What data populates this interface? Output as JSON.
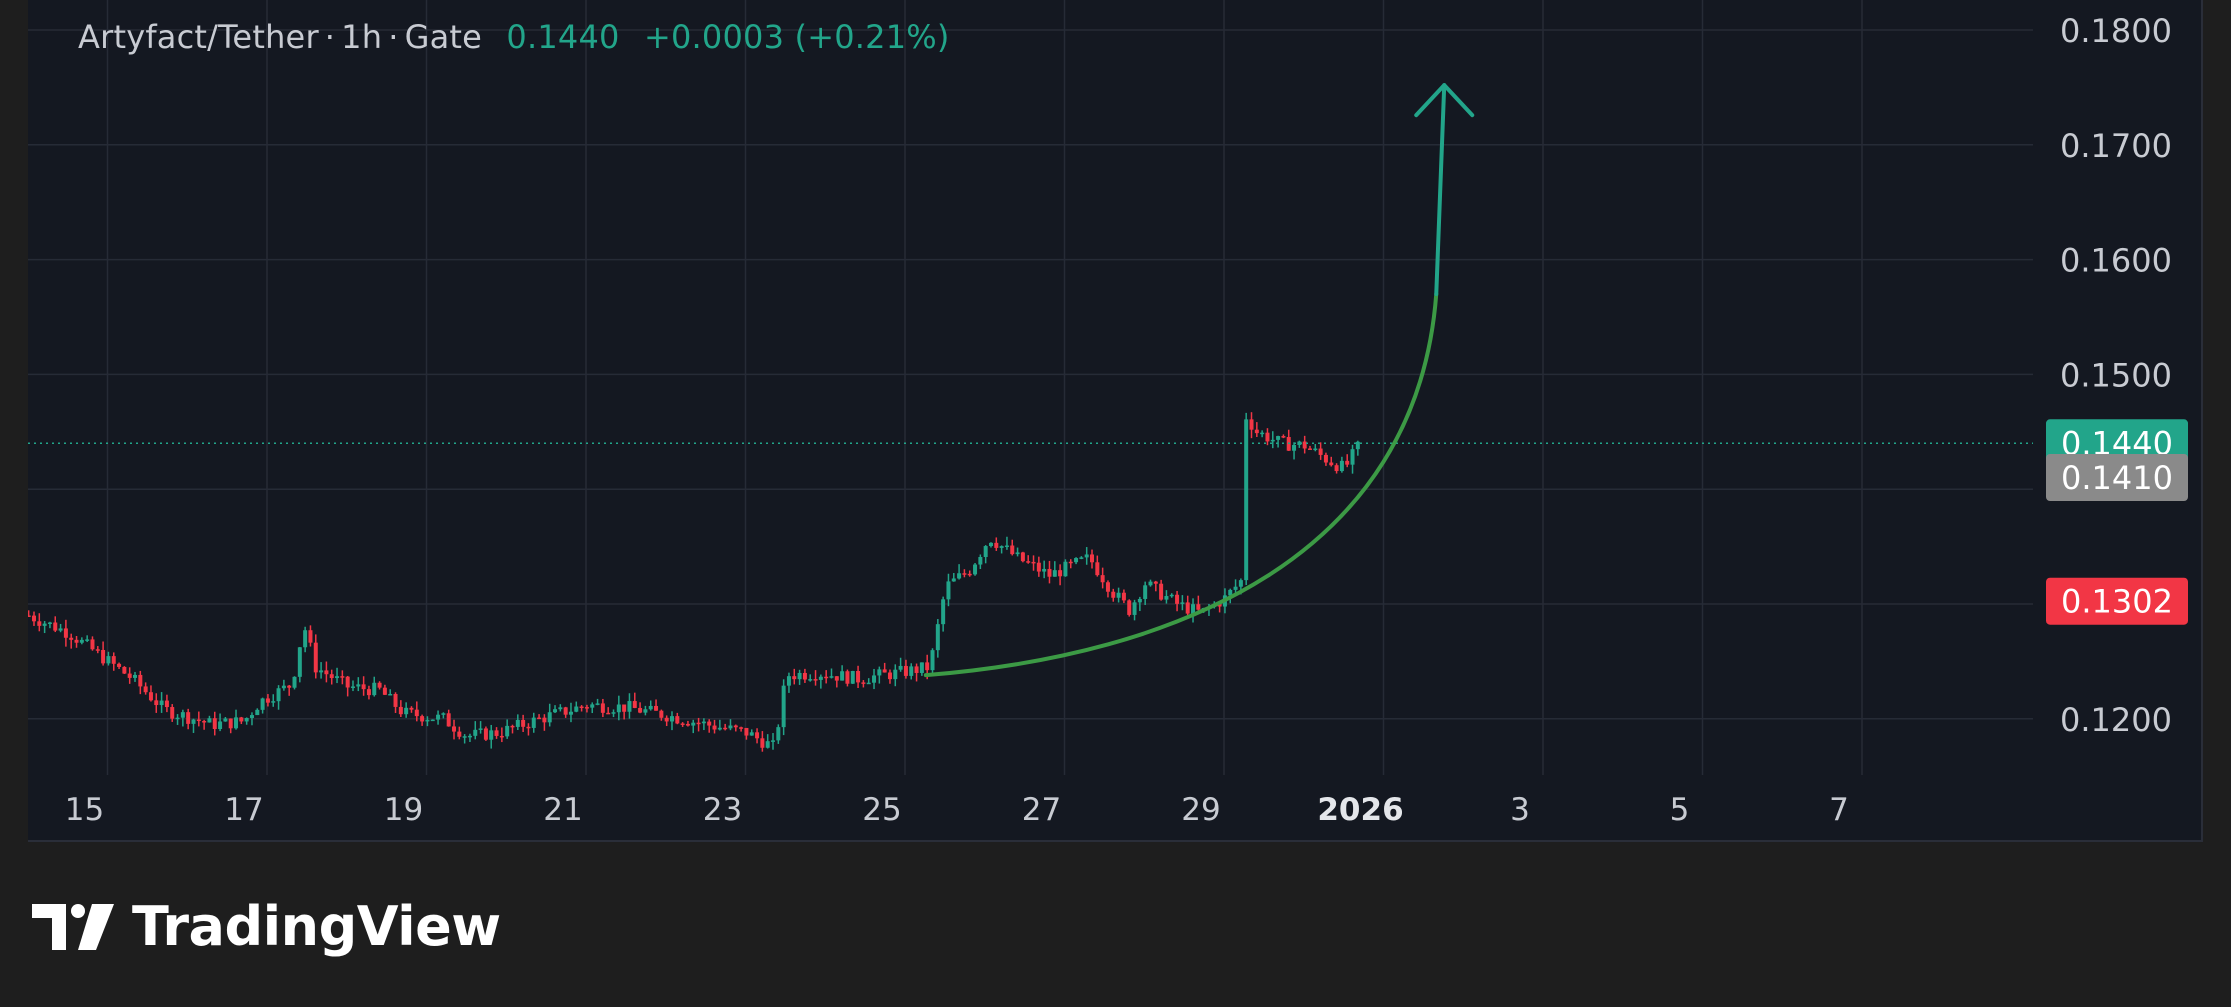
{
  "header": {
    "symbol": "Artyfact/Tether",
    "interval": "1h",
    "exchange": "Gate",
    "separator": "·",
    "last_price": "0.1440",
    "change": "+0.0003 (+0.21%)"
  },
  "footer": {
    "brand": "TradingView"
  },
  "colors": {
    "background": "#141821",
    "grid": "#262b36",
    "up": "#22a58a",
    "down": "#f23645",
    "curve": "#3c9a45",
    "arrow": "#22a58a",
    "price_line": "#22a58a"
  },
  "chart_data": {
    "type": "candlestick",
    "ylim": [
      0.116,
      0.184
    ],
    "y_ticks": [
      "0.1200",
      "0.1500",
      "0.1600",
      "0.1700",
      "0.1800"
    ],
    "x_ticks": [
      "15",
      "17",
      "19",
      "21",
      "23",
      "25",
      "27",
      "29",
      "2026",
      "3",
      "5",
      "7"
    ],
    "x_ticks_bold": [
      "2026"
    ],
    "price_labels": [
      {
        "text": "0.1440",
        "value": 0.144,
        "color": "#22a58a"
      },
      {
        "text": "0.1410",
        "value": 0.141,
        "color": "#8a8a8a"
      },
      {
        "text": "0.1302",
        "value": 0.1302,
        "color": "#f23645"
      }
    ],
    "series": [
      {
        "price_path": [
          [
            14.3,
            0.129
          ],
          [
            14.8,
            0.1275
          ],
          [
            15.2,
            0.1255
          ],
          [
            15.6,
            0.1235
          ],
          [
            16.0,
            0.1208
          ],
          [
            16.6,
            0.1195
          ],
          [
            17.0,
            0.1198
          ],
          [
            17.2,
            0.1215
          ],
          [
            17.6,
            0.123
          ],
          [
            17.75,
            0.1282
          ],
          [
            17.9,
            0.1245
          ],
          [
            18.3,
            0.1228
          ],
          [
            18.7,
            0.1225
          ],
          [
            19.0,
            0.1205
          ],
          [
            19.5,
            0.12
          ],
          [
            19.8,
            0.1185
          ],
          [
            20.2,
            0.1188
          ],
          [
            20.8,
            0.1202
          ],
          [
            21.3,
            0.1212
          ],
          [
            21.8,
            0.121
          ],
          [
            22.3,
            0.1203
          ],
          [
            22.8,
            0.1195
          ],
          [
            23.3,
            0.1188
          ],
          [
            23.65,
            0.1175
          ],
          [
            23.8,
            0.1238
          ],
          [
            24.2,
            0.124
          ],
          [
            24.7,
            0.1235
          ],
          [
            25.2,
            0.124
          ],
          [
            25.6,
            0.1245
          ],
          [
            25.8,
            0.1315
          ],
          [
            26.1,
            0.133
          ],
          [
            26.35,
            0.1358
          ],
          [
            26.7,
            0.134
          ],
          [
            27.1,
            0.1325
          ],
          [
            27.6,
            0.134
          ],
          [
            27.9,
            0.131
          ],
          [
            28.1,
            0.1295
          ],
          [
            28.3,
            0.1318
          ],
          [
            28.7,
            0.13
          ],
          [
            29.0,
            0.1292
          ],
          [
            29.3,
            0.1305
          ],
          [
            29.5,
            0.132
          ],
          [
            29.55,
            0.1465
          ],
          [
            29.7,
            0.145
          ],
          [
            30.0,
            0.144
          ],
          [
            30.3,
            0.1438
          ],
          [
            30.6,
            0.1425
          ],
          [
            30.8,
            0.1418
          ],
          [
            31.0,
            0.144
          ]
        ]
      }
    ]
  }
}
